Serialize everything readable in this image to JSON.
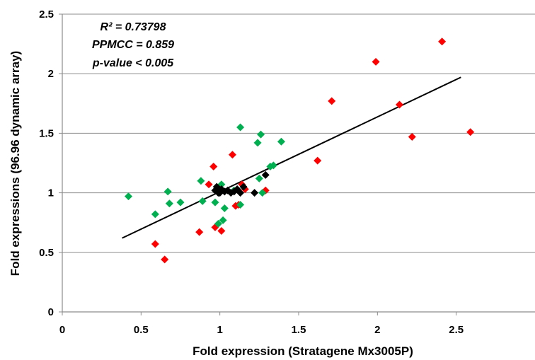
{
  "chart_data": {
    "type": "scatter",
    "title": "",
    "xlabel": "Fold expression (Stratagene Mx3005P)",
    "ylabel": "Fold expressions (96.96 dynamic array)",
    "xlim": [
      0,
      3
    ],
    "ylim": [
      0,
      2.5
    ],
    "x_ticks": [
      "0",
      "0.5",
      "1",
      "1.5",
      "2",
      "2.5"
    ],
    "y_ticks": [
      "0",
      "0.5",
      "1",
      "1.5",
      "2",
      "2.5"
    ],
    "grid": "horizontal",
    "legend": "none",
    "annotations": [
      "R² = 0.73798",
      "PPMCC = 0.859",
      "p-value < 0.005"
    ],
    "trendline": {
      "x": [
        0.38,
        2.53
      ],
      "y": [
        0.62,
        1.97
      ],
      "color": "#000000"
    },
    "series": [
      {
        "color": "#ff0000",
        "points": [
          [
            2.41,
            2.27
          ],
          [
            1.99,
            2.1
          ],
          [
            1.71,
            1.77
          ],
          [
            2.14,
            1.74
          ],
          [
            2.22,
            1.47
          ],
          [
            2.59,
            1.51
          ],
          [
            1.62,
            1.27
          ],
          [
            0.96,
            1.22
          ],
          [
            1.08,
            1.32
          ],
          [
            0.93,
            1.07
          ],
          [
            1.14,
            1.07
          ],
          [
            1.16,
            1.03
          ],
          [
            1.29,
            1.02
          ],
          [
            1.1,
            0.89
          ],
          [
            1.12,
            0.9
          ],
          [
            0.97,
            0.71
          ],
          [
            1.01,
            0.68
          ],
          [
            0.87,
            0.67
          ],
          [
            0.59,
            0.57
          ],
          [
            0.65,
            0.44
          ]
        ]
      },
      {
        "color": "#00b050",
        "points": [
          [
            1.13,
            1.55
          ],
          [
            1.26,
            1.49
          ],
          [
            1.24,
            1.42
          ],
          [
            1.39,
            1.43
          ],
          [
            1.32,
            1.22
          ],
          [
            1.34,
            1.23
          ],
          [
            0.88,
            1.1
          ],
          [
            1.01,
            1.07
          ],
          [
            1.25,
            1.12
          ],
          [
            0.42,
            0.97
          ],
          [
            0.67,
            1.01
          ],
          [
            1.27,
            1.0
          ],
          [
            0.59,
            0.82
          ],
          [
            0.68,
            0.91
          ],
          [
            0.75,
            0.92
          ],
          [
            0.89,
            0.93
          ],
          [
            0.97,
            0.92
          ],
          [
            1.03,
            0.87
          ],
          [
            1.13,
            0.9
          ],
          [
            1.09,
            1.02
          ],
          [
            0.99,
            0.74
          ],
          [
            1.02,
            0.77
          ]
        ]
      },
      {
        "color": "#000000",
        "points": [
          [
            0.97,
            1.02
          ],
          [
            0.98,
            1.05
          ],
          [
            1.0,
            1.0
          ],
          [
            1.01,
            1.03
          ],
          [
            1.03,
            1.01
          ],
          [
            1.05,
            1.02
          ],
          [
            1.07,
            1.0
          ],
          [
            1.09,
            1.01
          ],
          [
            1.11,
            1.03
          ],
          [
            1.13,
            1.0
          ],
          [
            1.22,
            1.0
          ],
          [
            1.29,
            1.15
          ],
          [
            0.99,
            1.0
          ],
          [
            1.15,
            1.05
          ]
        ]
      }
    ]
  }
}
